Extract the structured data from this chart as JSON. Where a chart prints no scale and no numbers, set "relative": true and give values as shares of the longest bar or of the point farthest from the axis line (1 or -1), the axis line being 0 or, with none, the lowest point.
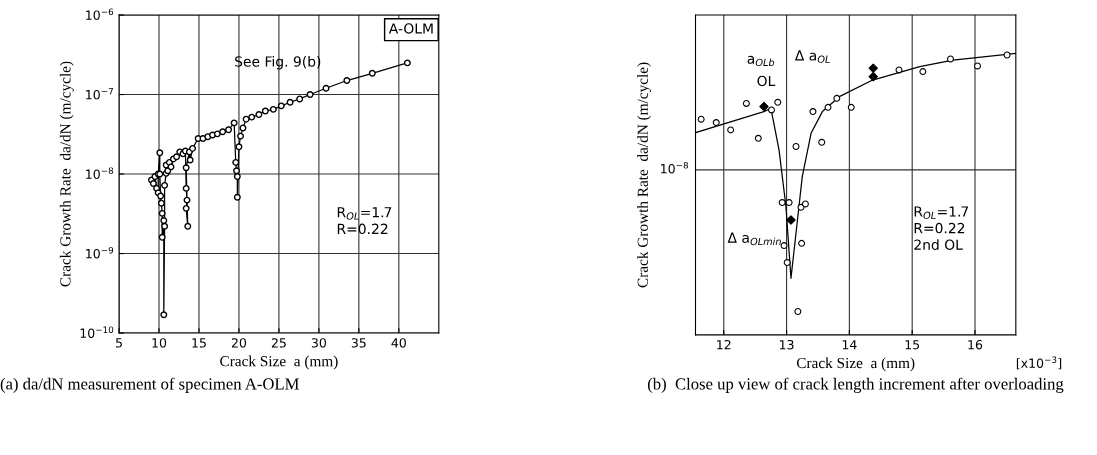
{
  "chart_data": [
    {
      "type": "line",
      "title": "(a) da/dN measurement of specimen A-OLM",
      "xlabel": "Crack Size  a (mm)",
      "ylabel": "Crack Growth Rate  da/dN (m/cycle)",
      "log": "y",
      "xlim": [
        5,
        45
      ],
      "xticks": [
        5,
        10,
        15,
        20,
        25,
        30,
        35,
        40
      ],
      "ylim": [
        1e-10,
        1e-06
      ],
      "yticks": [
        {
          "value": 1e-10,
          "label": "10$^{−10}$"
        },
        {
          "value": 1e-09,
          "label": "10$^{−9}$"
        },
        {
          "value": 1e-08,
          "label": "10$^{−8}$"
        },
        {
          "value": 1e-07,
          "label": "10$^{−7}$"
        },
        {
          "value": 1e-06,
          "label": "10$^{−6}$"
        }
      ],
      "grid": true,
      "marker": "circle",
      "line_style": "solid",
      "series": [
        {
          "color": "#000000",
          "x": [
            9.06,
            9.3,
            9.5,
            9.7,
            9.9,
            9.9,
            10.1,
            10.1,
            10.2,
            10.3,
            10.4,
            10.4,
            10.6,
            10.6,
            10.7,
            10.7,
            10.9,
            10.9,
            11.1,
            11.3,
            11.5,
            11.8,
            12.2,
            12.6,
            13.0,
            13.3,
            13.4,
            13.5,
            13.4,
            13.6,
            13.4,
            13.8,
            13.9,
            14.2,
            14.9,
            15.5,
            16.1,
            16.7,
            17.3,
            17.96,
            18.7,
            19.4,
            19.6,
            19.7,
            19.8,
            19.8,
            20.0,
            20.2,
            20.5,
            20.9,
            21.6,
            22.5,
            23.3,
            24.3,
            25.3,
            26.4,
            27.6,
            28.9,
            30.9,
            33.5,
            36.68,
            41.07
          ],
          "values": [
            8.4e-09,
            7.6e-09,
            9.3e-09,
            6.6e-09,
            5.8e-09,
            1e-08,
            1.85e-08,
            1e-08,
            5.3e-09,
            4.3e-09,
            3.2e-09,
            1.6e-09,
            2.6e-09,
            1.7e-10,
            2.2e-09,
            7.2e-09,
            1.02e-08,
            1.3e-08,
            1.1e-08,
            1.4e-08,
            1.23e-08,
            1.55e-08,
            1.65e-08,
            1.9e-08,
            1.8e-08,
            1.95e-08,
            6.6e-09,
            4.7e-09,
            3.7e-09,
            2.2e-09,
            1.2e-08,
            1.9e-08,
            1.5e-08,
            2.1e-08,
            2.8e-08,
            2.8e-08,
            2.95e-08,
            3.1e-08,
            3.2e-08,
            3.4e-08,
            3.6e-08,
            4.4e-08,
            1.4e-08,
            1.1e-08,
            9.3e-09,
            5.1e-09,
            2.2e-08,
            3e-08,
            3.8e-08,
            4.9e-08,
            5.2e-08,
            5.6e-08,
            6.2e-08,
            6.5e-08,
            7.2e-08,
            8e-08,
            8.8e-08,
            1e-07,
            1.2e-07,
            1.5e-07,
            1.85e-07,
            2.5e-07
          ]
        }
      ],
      "annotations": [
        "A-OLM",
        "R$_{OL}$=1.7\nR=0.22",
        "See Fig. 9(b)"
      ]
    },
    {
      "type": "scatter",
      "title": "(b)  Close up view of crack length increment after overloading",
      "xlabel": "Crack Size  a (mm)",
      "ylabel": "Crack Growth Rate  da/dN (m/cycle)",
      "relative": true,
      "xlim": [
        11.55,
        16.65
      ],
      "xticks": [
        12,
        13,
        14,
        15,
        16
      ],
      "ref_lines": [
        {
          "axis": "y",
          "value": 0.586,
          "label": "10$^{−8}$"
        }
      ],
      "grid": "x",
      "series": [
        {
          "type": "scatter",
          "marker": "circle",
          "color": "#000000",
          "x": [
            11.64,
            11.88,
            12.11,
            12.36,
            12.55,
            12.76,
            12.86,
            13.15,
            12.93,
            13.04,
            13.23,
            13.3,
            12.96,
            13.24,
            13.01,
            13.18,
            13.42,
            13.56,
            13.66,
            13.8,
            14.03,
            14.79,
            15.17,
            15.61,
            16.04,
            16.51
          ],
          "values": [
            0.766,
            0.754,
            0.728,
            0.822,
            0.698,
            0.799,
            0.826,
            0.669,
            0.47,
            0.47,
            0.453,
            0.465,
            0.317,
            0.325,
            0.257,
            0.083,
            0.793,
            0.684,
            0.808,
            0.84,
            0.808,
            0.941,
            0.935,
            0.98,
            0.955,
            0.994
          ]
        },
        {
          "type": "scatter",
          "marker": "diamond",
          "color": "#000000",
          "x": [
            12.64,
            13.07,
            14.38,
            14.38
          ],
          "values": [
            0.811,
            0.408,
            0.947,
            0.917
          ]
        },
        {
          "type": "line",
          "marker": "none",
          "color": "#000000",
          "x": [
            11.55,
            12.64,
            12.75,
            12.88,
            12.99,
            13.07,
            13.15,
            13.25,
            13.39,
            13.57,
            13.84,
            14.37,
            15.12,
            15.65,
            16.65
          ],
          "values": [
            0.718,
            0.793,
            0.805,
            0.657,
            0.456,
            0.201,
            0.361,
            0.562,
            0.716,
            0.793,
            0.846,
            0.905,
            0.953,
            0.976,
            1.0
          ]
        }
      ],
      "annotations": [
        "a$_{OLb}$",
        "Δ a$_{OL}$",
        "OL",
        "Δ a$_{OLmin}$",
        "R$_{OL}$=1.7\nR=0.22\n2nd OL",
        "[x10$^{−3}$]"
      ]
    }
  ]
}
